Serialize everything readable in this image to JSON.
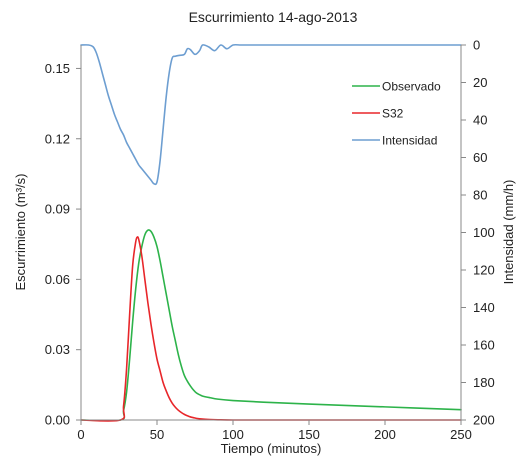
{
  "chart_data": {
    "type": "line",
    "title": "Escurrimiento 14-ago-2013",
    "xlabel": "Tiempo (minutos)",
    "ylabel_left": "Escurrimiento (m³/s)",
    "ylabel_right": "Intensidad (mm/h)",
    "xlim": [
      0,
      250
    ],
    "ylim_left": [
      0,
      0.16
    ],
    "ylim_right": [
      0,
      200
    ],
    "right_axis_inverted": true,
    "x_ticks": [
      0,
      50,
      100,
      150,
      200,
      250
    ],
    "x_tick_labels": [
      "0",
      "50",
      "100",
      "150",
      "200",
      "250"
    ],
    "y_left_ticks": [
      0,
      0.03,
      0.06,
      0.09,
      0.12,
      0.15
    ],
    "y_left_tick_labels": [
      "0.00",
      "0.03",
      "0.06",
      "0.09",
      "0.12",
      "0.15"
    ],
    "y_right_ticks": [
      0,
      20,
      40,
      60,
      80,
      100,
      120,
      140,
      160,
      180,
      200
    ],
    "y_right_tick_labels": [
      "0",
      "20",
      "40",
      "60",
      "80",
      "100",
      "120",
      "140",
      "160",
      "180",
      "200"
    ],
    "grid": false,
    "legend_position": "top-right",
    "series": [
      {
        "name": "Observado",
        "color": "#2db34a",
        "axis": "left",
        "x": [
          0,
          26,
          28,
          30,
          32,
          34,
          36,
          38,
          40,
          42,
          44,
          46,
          48,
          50,
          52,
          54,
          56,
          58,
          60,
          62,
          64,
          66,
          68,
          70,
          72,
          74,
          76,
          78,
          80,
          85,
          90,
          100,
          120,
          150,
          200,
          250
        ],
        "y": [
          0,
          0,
          0.004,
          0.012,
          0.026,
          0.042,
          0.056,
          0.067,
          0.074,
          0.079,
          0.081,
          0.0805,
          0.078,
          0.074,
          0.068,
          0.061,
          0.054,
          0.047,
          0.04,
          0.034,
          0.028,
          0.023,
          0.019,
          0.0165,
          0.0145,
          0.0128,
          0.0115,
          0.0108,
          0.0102,
          0.0095,
          0.0089,
          0.0083,
          0.0076,
          0.0068,
          0.0056,
          0.0044
        ]
      },
      {
        "name": "S32",
        "color": "#e8262a",
        "axis": "left",
        "x": [
          0,
          26,
          28,
          30,
          32,
          34,
          36,
          37,
          38,
          40,
          42,
          44,
          46,
          48,
          50,
          52,
          54,
          56,
          58,
          60,
          62,
          64,
          66,
          68,
          70,
          72,
          74,
          76,
          80,
          85,
          90,
          100,
          120,
          150,
          200,
          250
        ],
        "y": [
          0,
          0,
          0.006,
          0.022,
          0.045,
          0.066,
          0.076,
          0.078,
          0.077,
          0.07,
          0.06,
          0.05,
          0.041,
          0.033,
          0.026,
          0.021,
          0.016,
          0.0125,
          0.0095,
          0.0072,
          0.0055,
          0.0042,
          0.0032,
          0.0024,
          0.0018,
          0.0013,
          0.001,
          0.0007,
          0.0004,
          0.0002,
          0.0001,
          0,
          0,
          0,
          0,
          0
        ]
      },
      {
        "name": "Intensidad",
        "color": "#6d9ed1",
        "axis": "right",
        "x": [
          0,
          5,
          8,
          10,
          12,
          14,
          16,
          18,
          20,
          22,
          24,
          26,
          28,
          30,
          32,
          34,
          36,
          38,
          40,
          42,
          44,
          46,
          48,
          50,
          52,
          54,
          56,
          58,
          60,
          62,
          65,
          68,
          70,
          72,
          75,
          78,
          80,
          84,
          88,
          92,
          96,
          100,
          105,
          110,
          115,
          120,
          125,
          130,
          135,
          140,
          145,
          150,
          155,
          160,
          165,
          170,
          175,
          180,
          185,
          190,
          195,
          200,
          205,
          210,
          215,
          220,
          225,
          230,
          235,
          240,
          245,
          250
        ],
        "y": [
          0,
          0,
          1,
          4,
          9,
          15,
          21,
          27,
          32,
          37,
          41,
          45,
          48,
          52,
          55,
          58,
          61,
          64,
          66,
          68,
          70,
          72,
          74,
          73,
          62,
          45,
          28,
          15,
          7,
          6,
          5.5,
          5,
          2,
          2.5,
          5,
          3,
          0,
          1,
          3,
          0,
          2,
          0,
          0,
          0,
          0,
          0,
          0,
          0,
          0,
          0,
          0,
          0,
          0,
          0,
          0,
          0,
          0,
          0,
          0,
          0,
          0,
          0,
          0,
          0,
          0,
          0,
          0,
          0,
          0,
          0,
          0,
          0
        ]
      }
    ]
  }
}
